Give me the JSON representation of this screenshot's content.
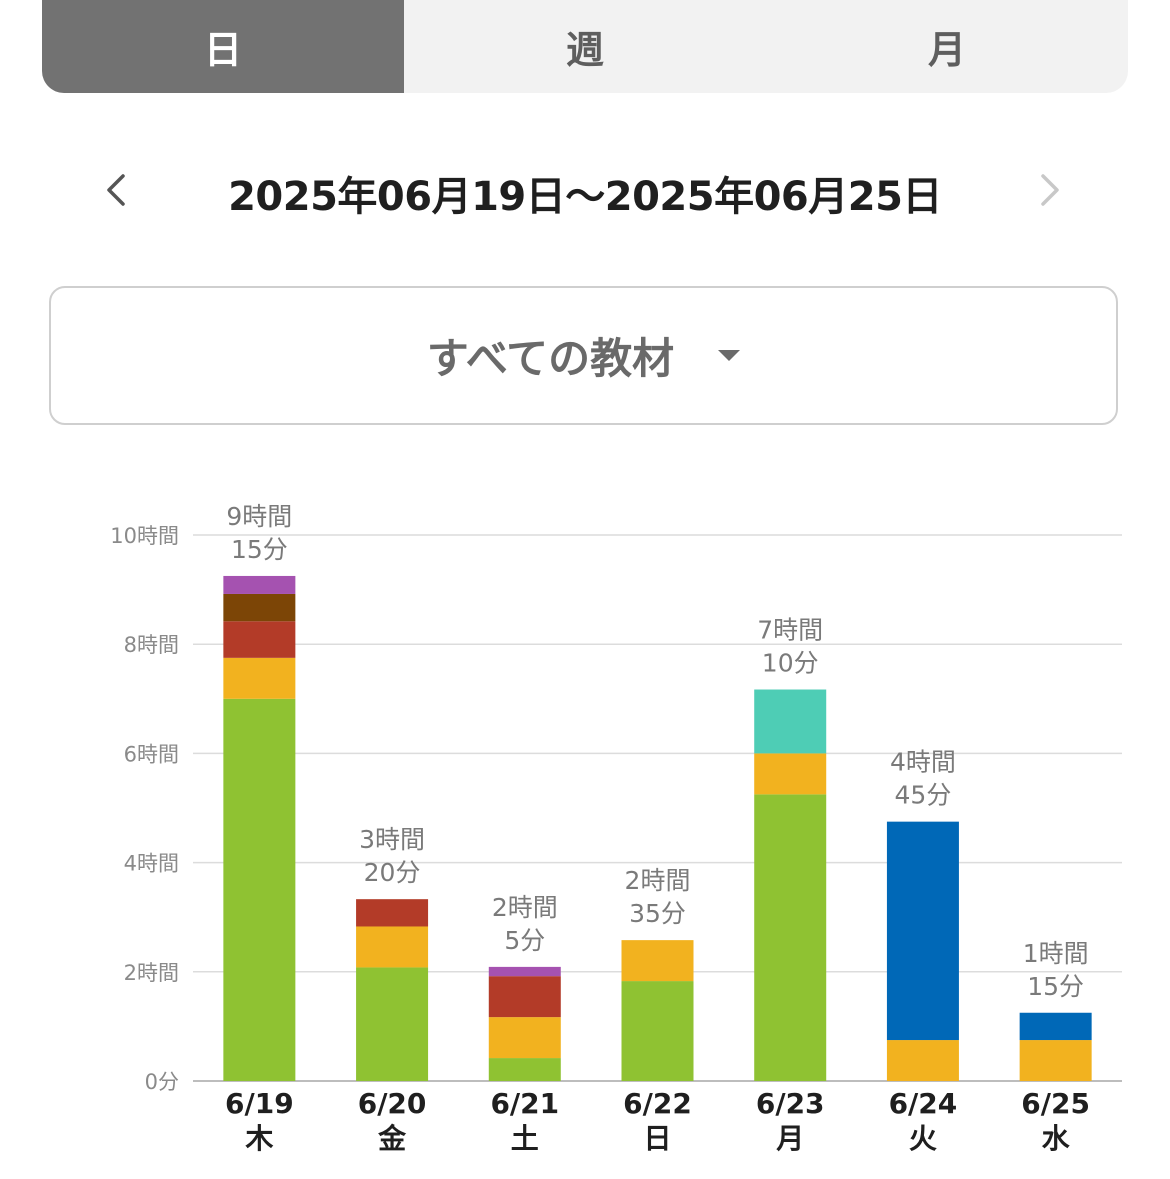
{
  "tabs": [
    {
      "label": "日",
      "active": true
    },
    {
      "label": "週",
      "active": false
    },
    {
      "label": "月",
      "active": false
    }
  ],
  "range": {
    "text": "2025年06月19日〜2025年06月25日"
  },
  "material_selector": {
    "label": "すべての教材"
  },
  "chart_data": {
    "type": "bar",
    "stacked": true,
    "title": "",
    "xlabel": "",
    "ylabel": "",
    "y_unit": "hours",
    "ylim": [
      0,
      10
    ],
    "y_ticks": [
      {
        "value": 0,
        "label": "0分"
      },
      {
        "value": 2,
        "label": "2時間"
      },
      {
        "value": 4,
        "label": "4時間"
      },
      {
        "value": 6,
        "label": "6時間"
      },
      {
        "value": 8,
        "label": "8時間"
      },
      {
        "value": 10,
        "label": "10時間"
      }
    ],
    "grid": true,
    "categories": [
      {
        "date": "6/19",
        "weekday": "木"
      },
      {
        "date": "6/20",
        "weekday": "金"
      },
      {
        "date": "6/21",
        "weekday": "土"
      },
      {
        "date": "6/22",
        "weekday": "日"
      },
      {
        "date": "6/23",
        "weekday": "月"
      },
      {
        "date": "6/24",
        "weekday": "火"
      },
      {
        "date": "6/25",
        "weekday": "水"
      }
    ],
    "totals": [
      [
        "9時間",
        "15分"
      ],
      [
        "3時間",
        "20分"
      ],
      [
        "2時間",
        "5分"
      ],
      [
        "2時間",
        "35分"
      ],
      [
        "7時間",
        "10分"
      ],
      [
        "4時間",
        "45分"
      ],
      [
        "1時間",
        "15分"
      ]
    ],
    "series": [
      {
        "color": "#8fc232",
        "values": [
          7.0,
          2.08,
          0.42,
          1.83,
          5.25,
          0,
          0
        ]
      },
      {
        "color": "#f2b21f",
        "values": [
          0.75,
          0.75,
          0.75,
          0.75,
          0.75,
          0.75,
          0.75
        ]
      },
      {
        "color": "#b33b28",
        "values": [
          0.67,
          0.5,
          0.75,
          0,
          0,
          0,
          0
        ]
      },
      {
        "color": "#7c4506",
        "values": [
          0.5,
          0,
          0,
          0,
          0,
          0,
          0
        ]
      },
      {
        "color": "#a552b0",
        "values": [
          0.33,
          0,
          0.17,
          0,
          0,
          0,
          0
        ]
      },
      {
        "color": "#4ecdb5",
        "values": [
          0,
          0,
          0,
          0,
          1.17,
          0,
          0
        ]
      },
      {
        "color": "#0068b7",
        "values": [
          0,
          0,
          0,
          0,
          0,
          4.0,
          0.5
        ]
      }
    ]
  }
}
